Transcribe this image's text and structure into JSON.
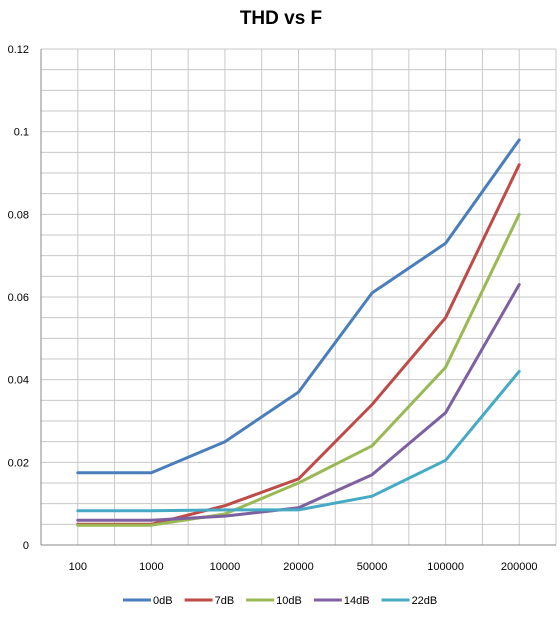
{
  "chart_data": {
    "type": "line",
    "title": "THD vs F",
    "xlabel": "",
    "ylabel": "",
    "categories": [
      "100",
      "1000",
      "10000",
      "20000",
      "50000",
      "100000",
      "200000"
    ],
    "ylim": [
      0,
      0.12
    ],
    "yticks": [
      "0",
      "0.02",
      "0.04",
      "0.06",
      "0.08",
      "0.1",
      "0.12"
    ],
    "grid": true,
    "legend_position": "bottom",
    "series": [
      {
        "name": "0dB",
        "color": "#4a7ebb",
        "values": [
          0.0175,
          0.0175,
          0.025,
          0.037,
          0.061,
          0.073,
          0.098
        ]
      },
      {
        "name": "7dB",
        "color": "#be4b48",
        "values": [
          0.005,
          0.005,
          0.0095,
          0.016,
          0.034,
          0.055,
          0.092
        ]
      },
      {
        "name": "10dB",
        "color": "#98b954",
        "values": [
          0.0048,
          0.0048,
          0.0075,
          0.015,
          0.024,
          0.043,
          0.08
        ]
      },
      {
        "name": "14dB",
        "color": "#7d60a0",
        "values": [
          0.006,
          0.006,
          0.007,
          0.009,
          0.017,
          0.032,
          0.063
        ]
      },
      {
        "name": "22dB",
        "color": "#46aac5",
        "values": [
          0.0083,
          0.0083,
          0.0085,
          0.0085,
          0.0118,
          0.0205,
          0.042
        ]
      }
    ]
  }
}
